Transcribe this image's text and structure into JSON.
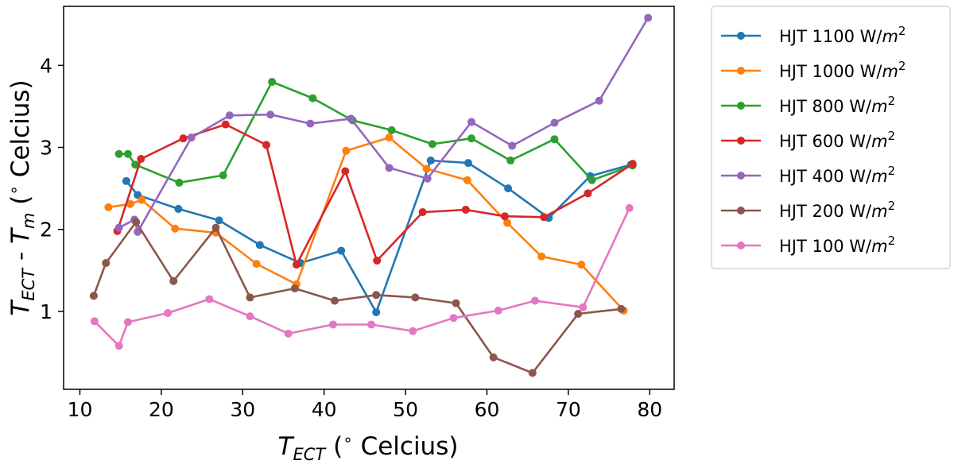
{
  "chart_data": {
    "type": "line",
    "title": "",
    "xlabel": "T_ECT (° Celcius)",
    "ylabel": "T_ECT - T_m (° Celcius)",
    "xlim": [
      8,
      83
    ],
    "ylim": [
      0.05,
      4.72
    ],
    "xticks": [
      10,
      20,
      30,
      40,
      50,
      60,
      70,
      80
    ],
    "yticks": [
      1,
      2,
      3,
      4
    ],
    "grid": false,
    "legend_position": "outside-right",
    "series": [
      {
        "name": "HJT 1100 W/m2",
        "label_main": "HJT 1100 W/",
        "color": "#1f77b4",
        "x": [
          15.7,
          17.1,
          22.1,
          27.1,
          32.1,
          37.1,
          42.1,
          46.4,
          53.1,
          57.7,
          62.6,
          67.6,
          72.7,
          77.7
        ],
        "y": [
          2.59,
          2.42,
          2.25,
          2.11,
          1.81,
          1.59,
          1.74,
          0.99,
          2.84,
          2.81,
          2.5,
          2.14,
          2.65,
          2.79
        ]
      },
      {
        "name": "HJT 1000 W/m2",
        "label_main": "HJT 1000 W/",
        "color": "#ff7f0e",
        "x": [
          13.5,
          16.2,
          17.6,
          21.7,
          26.7,
          31.7,
          36.6,
          42.7,
          48.0,
          52.6,
          57.6,
          62.5,
          66.7,
          71.6,
          76.8
        ],
        "y": [
          2.27,
          2.31,
          2.36,
          2.01,
          1.96,
          1.58,
          1.33,
          2.96,
          3.12,
          2.74,
          2.6,
          2.08,
          1.67,
          1.57,
          1.01
        ]
      },
      {
        "name": "HJT 800 W/m2",
        "label_main": "HJT 800 W/",
        "color": "#2ca02c",
        "x": [
          14.8,
          15.9,
          16.8,
          22.2,
          27.6,
          33.6,
          38.6,
          43.5,
          48.3,
          53.3,
          58.1,
          62.9,
          68.3,
          72.9,
          77.9
        ],
        "y": [
          2.92,
          2.92,
          2.79,
          2.57,
          2.66,
          3.8,
          3.6,
          3.33,
          3.21,
          3.04,
          3.11,
          2.84,
          3.1,
          2.6,
          2.78
        ]
      },
      {
        "name": "HJT 600 W/m2",
        "label_main": "HJT 600 W/",
        "color": "#d62728",
        "x": [
          14.6,
          17.5,
          22.7,
          27.9,
          32.9,
          36.6,
          42.6,
          46.5,
          52.1,
          57.4,
          62.2,
          67.0,
          72.4,
          77.9
        ],
        "y": [
          1.98,
          2.86,
          3.11,
          3.28,
          3.03,
          1.57,
          2.71,
          1.62,
          2.21,
          2.24,
          2.16,
          2.15,
          2.44,
          2.8
        ]
      },
      {
        "name": "HJT 400 W/m2",
        "label_main": "HJT 400 W/",
        "color": "#9467bd",
        "x": [
          14.8,
          16.7,
          17.1,
          23.7,
          28.4,
          33.4,
          38.3,
          43.3,
          48.0,
          52.7,
          58.1,
          63.1,
          68.3,
          73.8,
          79.8
        ],
        "y": [
          2.02,
          2.12,
          1.97,
          3.12,
          3.39,
          3.4,
          3.29,
          3.35,
          2.75,
          2.62,
          3.31,
          3.02,
          3.3,
          3.57,
          4.58
        ]
      },
      {
        "name": "HJT 200 W/m2",
        "label_main": "HJT 200 W/",
        "color": "#8c564b",
        "x": [
          11.7,
          13.2,
          16.9,
          21.5,
          26.7,
          30.9,
          36.4,
          41.3,
          46.4,
          51.2,
          56.2,
          60.8,
          65.6,
          71.2,
          76.5
        ],
        "y": [
          1.19,
          1.59,
          2.09,
          1.37,
          2.02,
          1.17,
          1.28,
          1.13,
          1.2,
          1.17,
          1.1,
          0.44,
          0.25,
          0.97,
          1.03
        ]
      },
      {
        "name": "HJT 100 W/m2",
        "label_main": "HJT 100 W/",
        "color": "#e377c2",
        "x": [
          11.8,
          14.8,
          15.9,
          20.8,
          25.9,
          30.9,
          35.6,
          41.1,
          45.8,
          50.9,
          55.9,
          61.4,
          65.9,
          71.8,
          77.5
        ],
        "y": [
          0.88,
          0.58,
          0.87,
          0.98,
          1.15,
          0.94,
          0.73,
          0.84,
          0.84,
          0.76,
          0.92,
          1.01,
          1.13,
          1.05,
          2.26
        ]
      }
    ]
  }
}
